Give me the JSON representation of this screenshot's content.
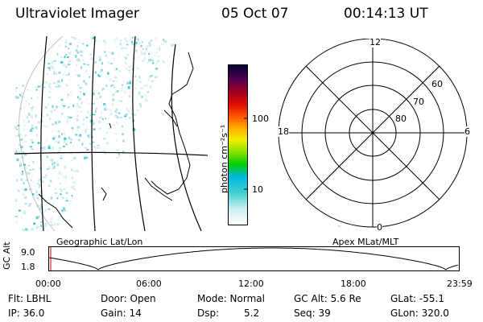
{
  "header": {
    "title": "Ultraviolet Imager",
    "date": "05 Oct 07",
    "time": "00:14:13 UT"
  },
  "colorbar": {
    "unit_label": "photon cm⁻²s⁻¹",
    "ticks": [
      "100",
      "10"
    ],
    "colors": [
      "#ffffff",
      "#cfeef0",
      "#40d0d0",
      "#00b8e0",
      "#00d000",
      "#80e000",
      "#f0f000",
      "#ffb000",
      "#ff6000",
      "#e01000",
      "#a00020",
      "#500050",
      "#000030"
    ]
  },
  "polar_plot": {
    "labels": {
      "top": "12",
      "bottom": "0",
      "left": "18",
      "right": "6"
    },
    "ring_labels": [
      "60",
      "70",
      "80"
    ]
  },
  "panel_labels": {
    "left": "Geographic Lat/Lon",
    "right": "Apex MLat/MLT"
  },
  "altitude_plot": {
    "ylabel": "GC Alt",
    "yticks": [
      "9.0",
      "1.8"
    ],
    "xticks": [
      "00:00",
      "06:00",
      "12:00",
      "18:00",
      "23:59"
    ]
  },
  "status": {
    "flt": "Flt: LBHL",
    "door": "Door: Open",
    "mode": "Mode: Normal",
    "gc_alt": "GC Alt: 5.6 Re",
    "glat": "GLat: -55.1",
    "ip": "IP: 36.0",
    "gain": "Gain: 14",
    "dsp_label": "Dsp:",
    "dsp_value": "5.2",
    "seq": "Seq: 39",
    "glon": "GLon: 320.0"
  }
}
